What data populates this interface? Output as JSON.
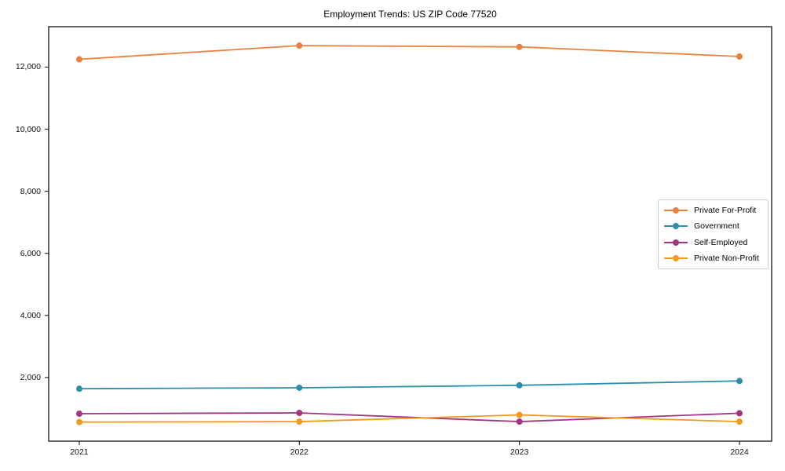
{
  "chart_data": {
    "type": "line",
    "title": "Employment Trends: US ZIP Code 77520",
    "x": [
      2021,
      2022,
      2023,
      2024
    ],
    "categories": [
      "2021",
      "2022",
      "2023",
      "2024"
    ],
    "series": [
      {
        "name": "Private For-Profit",
        "color": "#E8823E",
        "values": [
          12250,
          12690,
          12650,
          12340
        ]
      },
      {
        "name": "Government",
        "color": "#2E8FAA",
        "values": [
          1640,
          1670,
          1750,
          1890
        ]
      },
      {
        "name": "Self-Employed",
        "color": "#A23582",
        "values": [
          835,
          860,
          580,
          850
        ]
      },
      {
        "name": "Private Non-Profit",
        "color": "#F09B1D",
        "values": [
          565,
          580,
          795,
          580
        ]
      }
    ],
    "ylim": [
      -50,
      13300
    ],
    "yticks": [
      2000,
      4000,
      6000,
      8000,
      10000,
      12000
    ],
    "yticklabels": [
      "2,000",
      "4,000",
      "6,000",
      "8,000",
      "10,000",
      "12,000"
    ],
    "xlabel": "",
    "ylabel": "",
    "grid": false,
    "legend_position": "center right"
  }
}
